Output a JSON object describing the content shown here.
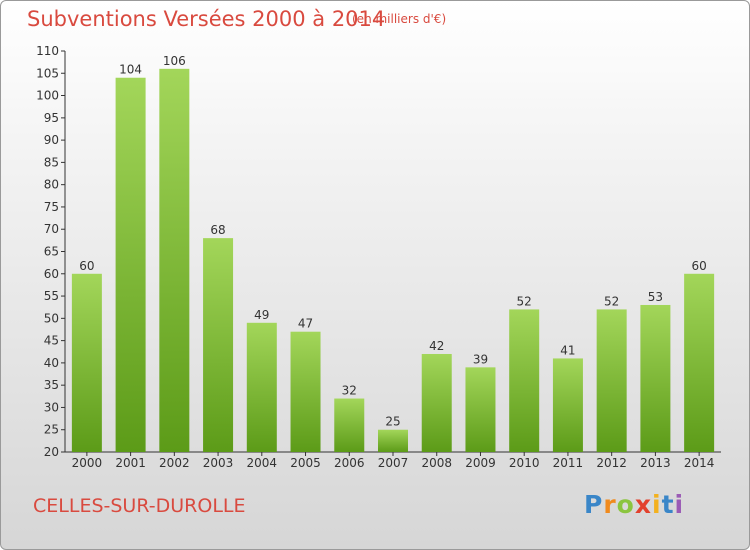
{
  "header": {
    "title": "Subventions Versées 2000 à 2014",
    "subtitle": "(en milliers d'€)"
  },
  "footer": {
    "town": "CELLES-SUR-DUROLLE",
    "logo": "Proxiti"
  },
  "colors": {
    "title": "#d94a3f",
    "bar_top": "#a3d65a",
    "bar_bottom": "#5c9b18",
    "axis": "#333333"
  },
  "chart_data": {
    "type": "bar",
    "categories": [
      "2000",
      "2001",
      "2002",
      "2003",
      "2004",
      "2005",
      "2006",
      "2007",
      "2008",
      "2009",
      "2010",
      "2011",
      "2012",
      "2013",
      "2014"
    ],
    "values": [
      60,
      104,
      106,
      68,
      49,
      47,
      32,
      25,
      42,
      39,
      52,
      41,
      52,
      53,
      60
    ],
    "title": "Subventions Versées 2000 à 2014",
    "subtitle": "(en milliers d'€)",
    "xlabel": "",
    "ylabel": "",
    "ylim": [
      20,
      110
    ],
    "yticks": [
      20,
      25,
      30,
      35,
      40,
      45,
      50,
      55,
      60,
      65,
      70,
      75,
      80,
      85,
      90,
      95,
      100,
      105,
      110
    ],
    "grid": false,
    "data_labels": true
  }
}
